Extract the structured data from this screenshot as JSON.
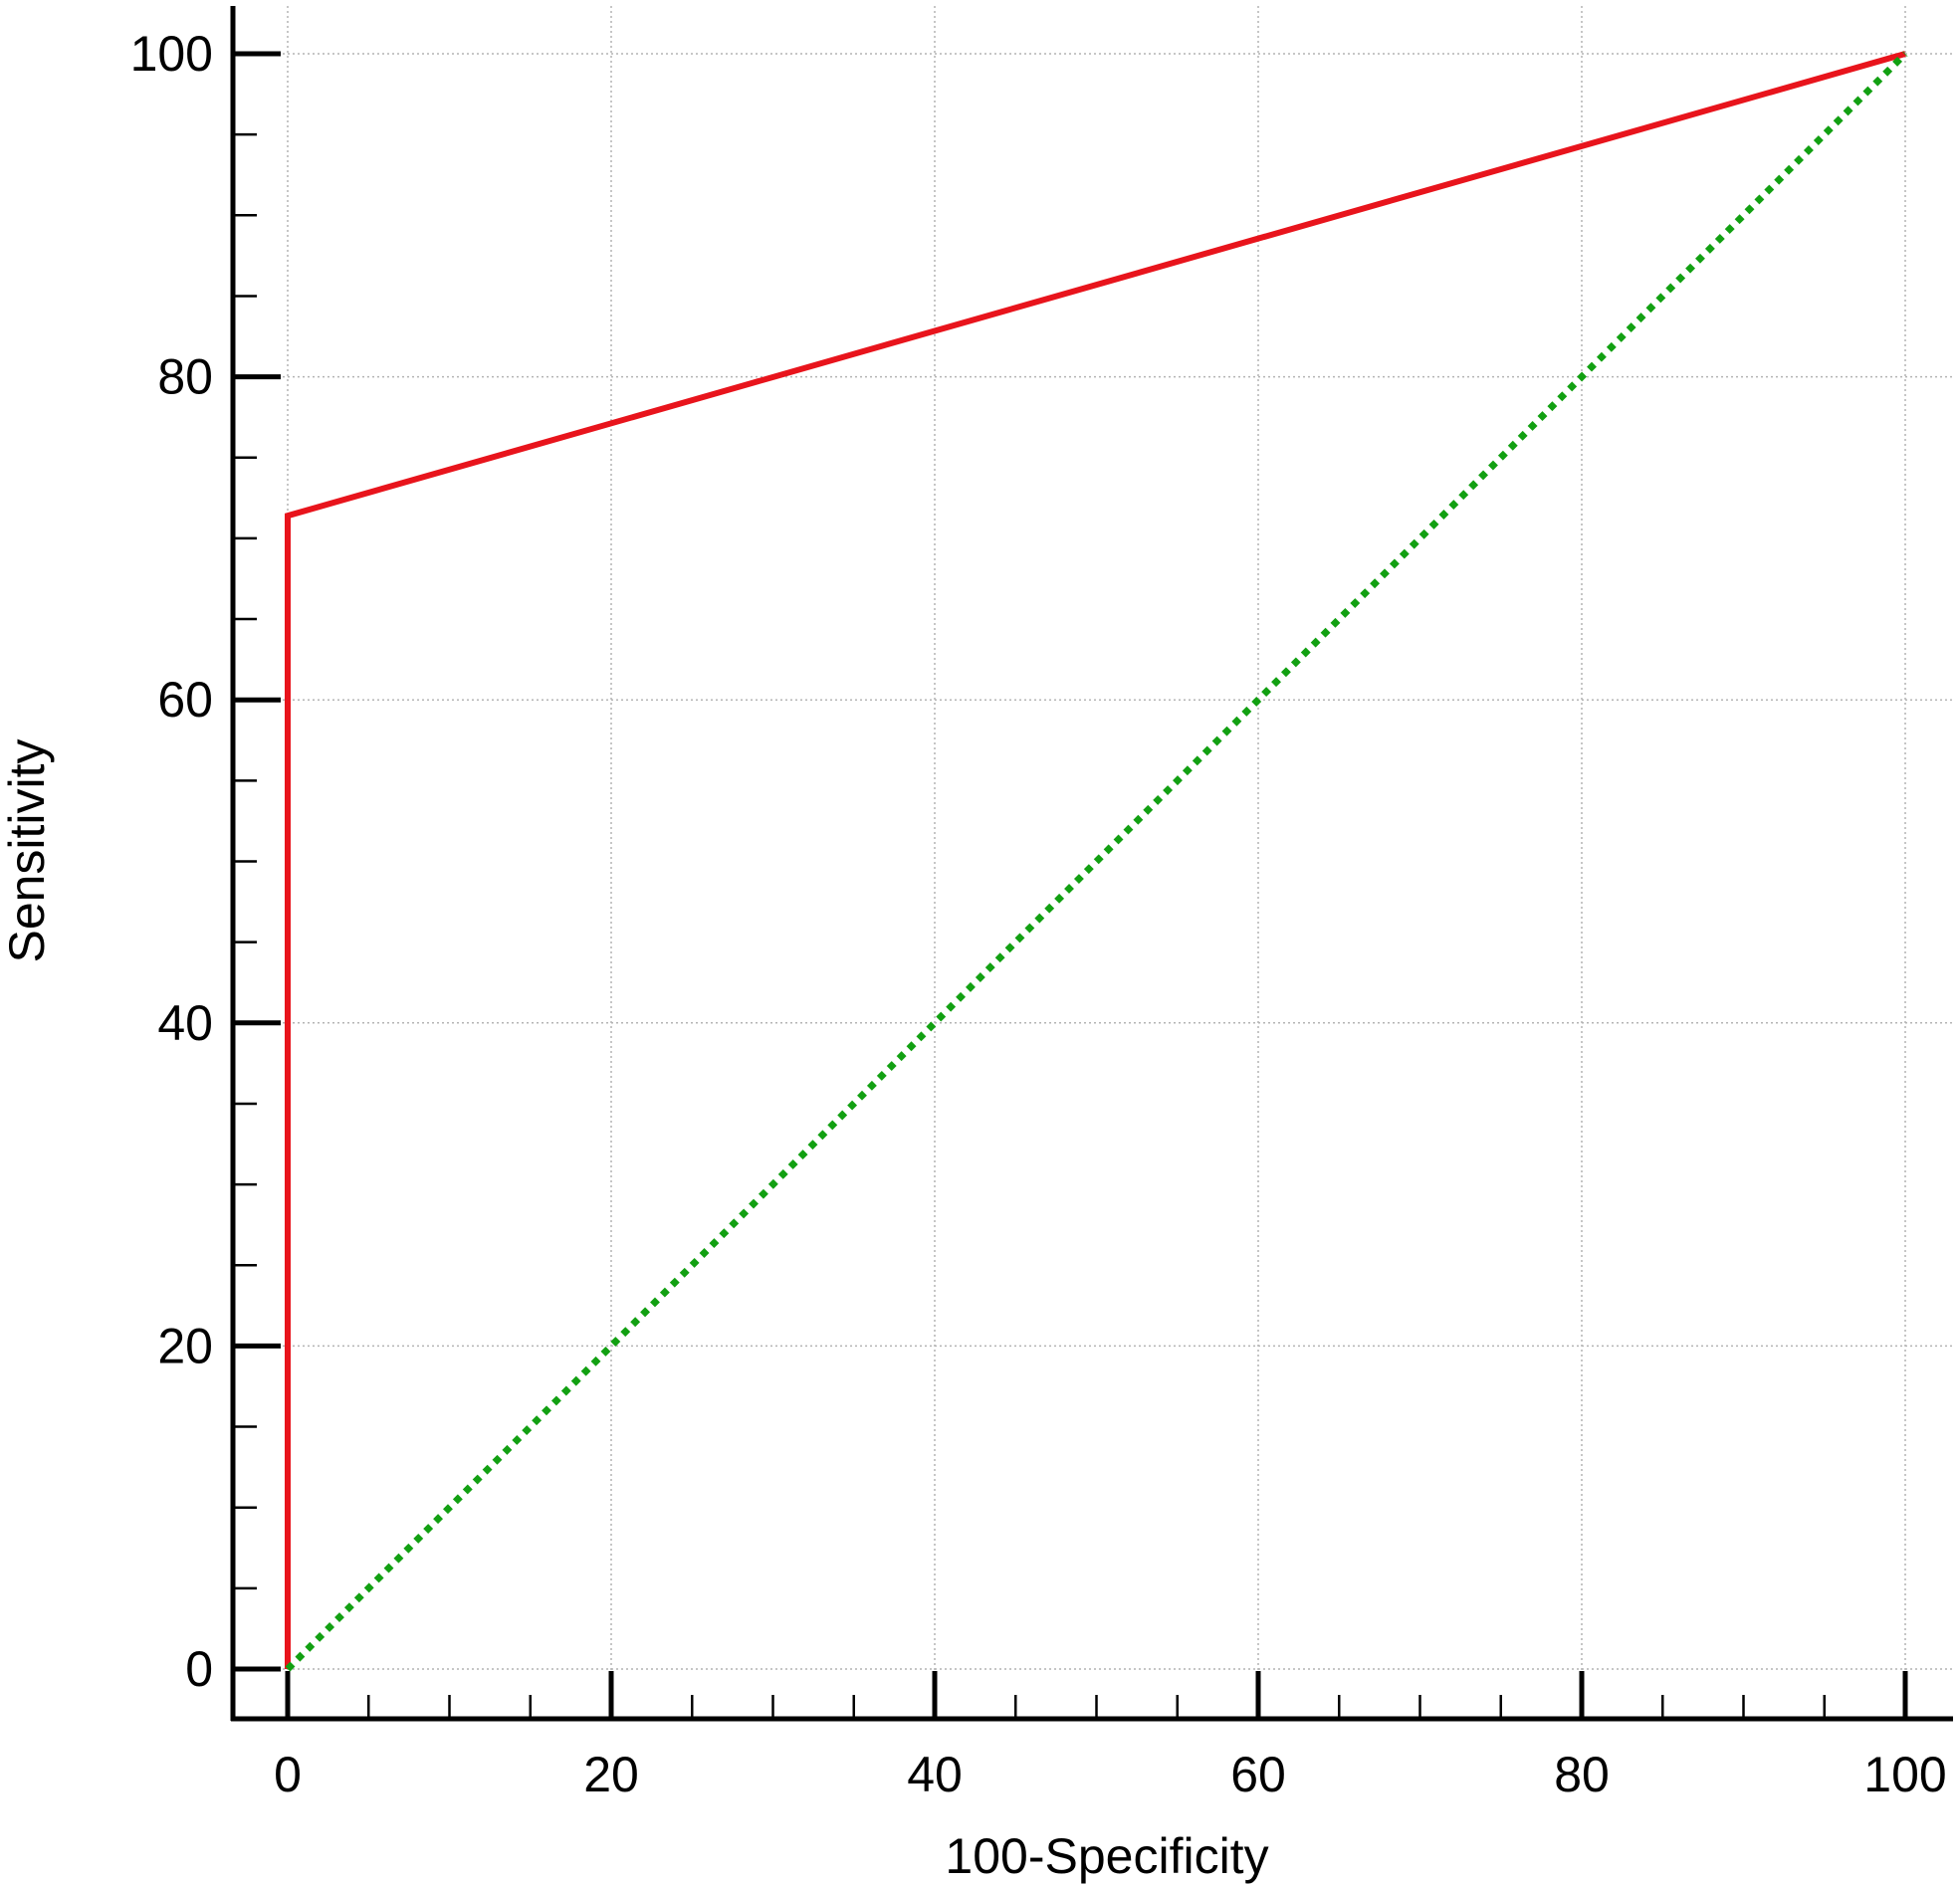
{
  "chart_data": {
    "type": "line",
    "title": "",
    "xlabel": "100-Specificity",
    "ylabel": "Sensitivity",
    "xlim": [
      0,
      100
    ],
    "ylim": [
      0,
      100
    ],
    "x_ticks": [
      0,
      20,
      40,
      60,
      80,
      100
    ],
    "y_ticks": [
      0,
      20,
      40,
      60,
      80,
      100
    ],
    "x_minor_step": 5,
    "y_minor_step": 5,
    "grid": true,
    "legend": "none",
    "series": [
      {
        "color": "#e8141c",
        "style": "solid",
        "points": [
          {
            "x": 0,
            "y": 0
          },
          {
            "x": 0,
            "y": 71.4
          },
          {
            "x": 100,
            "y": 100
          }
        ]
      },
      {
        "color": "#12a012",
        "style": "dotted",
        "points": [
          {
            "x": 0,
            "y": 0
          },
          {
            "x": 100,
            "y": 100
          }
        ]
      }
    ]
  }
}
